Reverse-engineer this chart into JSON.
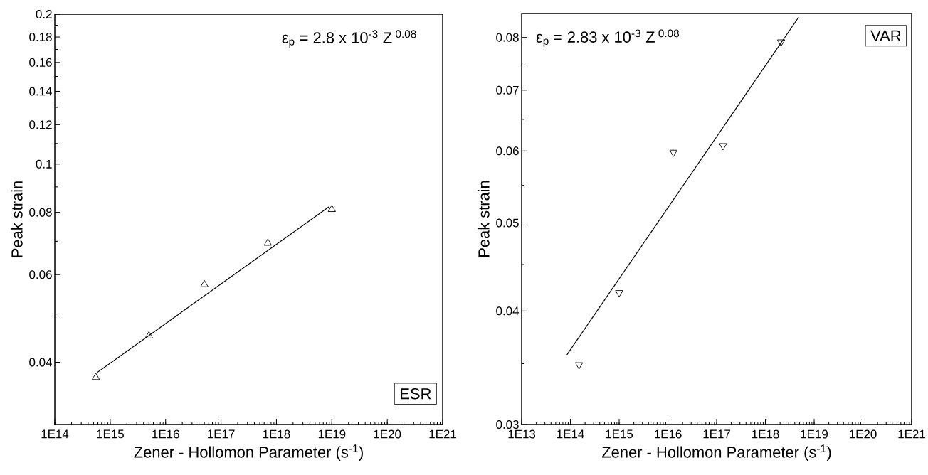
{
  "chart_data": [
    {
      "type": "scatter",
      "xlabel": "Zener - Hollomon Parameter (s$^{-1}$)",
      "ylabel": "Peak strain",
      "log": "xy",
      "grid": false,
      "xlim": [
        100000000000000.0,
        1e+21
      ],
      "ylim": [
        0.03,
        0.2
      ],
      "xticks": [
        {
          "value": 100000000000000.0,
          "label": "1E14"
        },
        {
          "value": 1000000000000000.0,
          "label": "1E15"
        },
        {
          "value": 1e+16,
          "label": "1E16"
        },
        {
          "value": 1e+17,
          "label": "1E17"
        },
        {
          "value": 1e+18,
          "label": "1E18"
        },
        {
          "value": 1e+19,
          "label": "1E19"
        },
        {
          "value": 1e+20,
          "label": "1E20"
        },
        {
          "value": 1e+21,
          "label": "1E21"
        }
      ],
      "yticks": [
        0.04,
        {
          "value": 0.05,
          "label": null
        },
        0.06,
        {
          "value": 0.07,
          "label": null
        },
        0.08,
        {
          "value": 0.09,
          "label": null
        },
        0.1,
        {
          "value": 0.11,
          "label": null
        },
        0.12,
        {
          "value": 0.13,
          "label": null
        },
        0.14,
        {
          "value": 0.15,
          "label": null
        },
        0.16,
        {
          "value": 0.17,
          "label": null
        },
        0.18,
        {
          "value": 0.19,
          "label": null
        },
        0.2
      ],
      "series": [
        {
          "marker": "triangle",
          "color": "#000000",
          "x": [
            550000000000000.0,
            5000000000000000.0,
            5e+16,
            7e+17,
            1e+19
          ],
          "values": [
            0.0373,
            0.0452,
            0.0573,
            0.0694,
            0.0811
          ]
        },
        {
          "type": "line",
          "marker": "none",
          "color": "#000000",
          "x": [
            590000000000000.0,
            9e+18
          ],
          "values": [
            0.0382,
            0.0822
          ]
        }
      ],
      "annotations": [
        "ε$_{p}$ = 2.8 x 10$^{-3}$ Z$^{ 0.08}$",
        "ESR"
      ]
    },
    {
      "type": "scatter",
      "xlabel": "Zener - Hollomon Parameter (s$^{-1}$)",
      "ylabel": "Peak strain",
      "log": "xy",
      "grid": false,
      "xlim": [
        10000000000000.0,
        1e+21
      ],
      "ylim": [
        0.03,
        0.085
      ],
      "xticks": [
        {
          "value": 10000000000000.0,
          "label": "1E13"
        },
        {
          "value": 100000000000000.0,
          "label": "1E14"
        },
        {
          "value": 1000000000000000.0,
          "label": "1E15"
        },
        {
          "value": 1e+16,
          "label": "1E16"
        },
        {
          "value": 1e+17,
          "label": "1E17"
        },
        {
          "value": 1e+18,
          "label": "1E18"
        },
        {
          "value": 1e+19,
          "label": "1E19"
        },
        {
          "value": 1e+20,
          "label": "1E20"
        },
        {
          "value": 1e+21,
          "label": "1E21"
        }
      ],
      "yticks": [
        0.03,
        {
          "value": 0.035,
          "label": null
        },
        0.04,
        {
          "value": 0.045,
          "label": null
        },
        0.05,
        {
          "value": 0.055,
          "label": null
        },
        0.06,
        {
          "value": 0.065,
          "label": null
        },
        0.07,
        {
          "value": 0.075,
          "label": null
        },
        0.08
      ],
      "series": [
        {
          "marker": "triangle down",
          "color": "#000000",
          "x": [
            150000000000000.0,
            1000000000000000.0,
            1.3e+16,
            1.35e+17,
            2.1e+18
          ],
          "values": [
            0.0349,
            0.0419,
            0.0598,
            0.0608,
            0.0791
          ]
        },
        {
          "type": "line",
          "marker": "none",
          "color": "#000000",
          "x": [
            85000000000000.0,
            4.8e+18
          ],
          "values": [
            0.0358,
            0.0842
          ]
        }
      ],
      "annotations": [
        "ε$_{p}$ = 2.83 x 10$^{-3}$ Z$^{ 0.08}$",
        "VAR"
      ]
    }
  ]
}
